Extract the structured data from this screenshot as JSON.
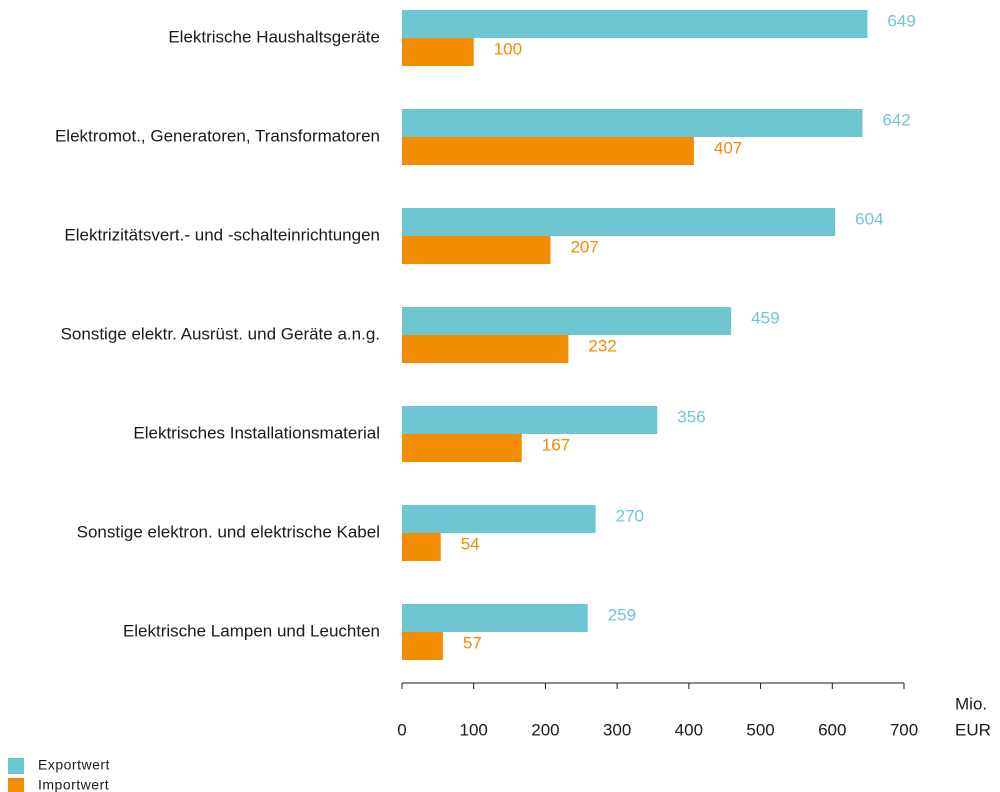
{
  "chart_data": {
    "type": "hbar",
    "categories": [
      "Elektrische Haushaltsgeräte",
      "Elektromot., Generatoren, Transformatoren",
      "Elektrizitätsvert.- und -schalteinrichtungen",
      "Sonstige elektr. Ausrüst. und Geräte a.n.g.",
      "Elektrisches Installationsmaterial",
      "Sonstige elektron. und elektrische Kabel",
      "Elektrische Lampen und Leuchten"
    ],
    "series": [
      {
        "name": "Exportwert",
        "color": "#6ec6d3",
        "values": [
          649,
          642,
          604,
          459,
          356,
          270,
          259
        ]
      },
      {
        "name": "Importwert",
        "color": "#f28c00",
        "values": [
          100,
          407,
          207,
          232,
          167,
          54,
          57
        ]
      }
    ],
    "xlabel": [
      "Mio.",
      "EUR"
    ],
    "xlim": [
      0,
      700
    ],
    "xticks": [
      0,
      100,
      200,
      300,
      400,
      500,
      600,
      700
    ]
  }
}
